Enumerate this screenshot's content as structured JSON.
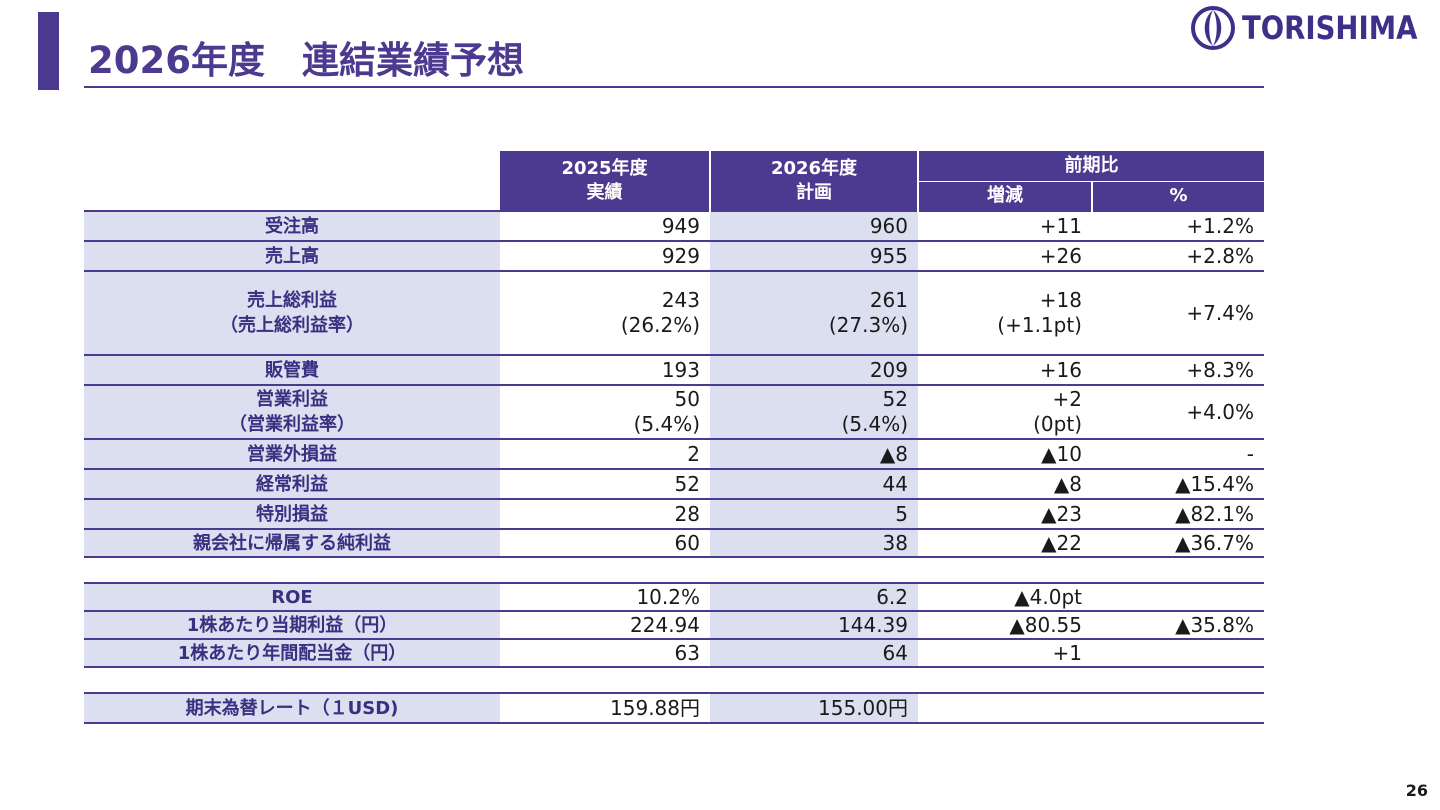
{
  "title": "2026年度　連結業績予想",
  "logo": {
    "text": "TORISHIMA",
    "icon": "torishima-logo-icon",
    "color": "#3d2f8a"
  },
  "page_number": "26",
  "colors": {
    "accent": "#4b3a8f",
    "label_bg": "#dcdff0"
  },
  "table": {
    "header": {
      "col1": [
        "2025年度",
        "実績"
      ],
      "col2": [
        "2026年度",
        "計画"
      ],
      "col3": "前期比",
      "col3a": "増減",
      "col3b": "%"
    },
    "rows": [
      {
        "label": [
          "受注高"
        ],
        "v2025": [
          "949"
        ],
        "v2026": [
          "960"
        ],
        "diff": [
          "+11"
        ],
        "pct": "+1.2%"
      },
      {
        "label": [
          "売上高"
        ],
        "v2025": [
          "929"
        ],
        "v2026": [
          "955"
        ],
        "diff": [
          "+26"
        ],
        "pct": "+2.8%"
      },
      {
        "label": [
          "売上総利益",
          "（売上総利益率）"
        ],
        "v2025": [
          "243",
          "(26.2%)"
        ],
        "v2026": [
          "261",
          "(27.3%)"
        ],
        "diff": [
          "+18",
          "(+1.1pt)"
        ],
        "pct": "+7.4%"
      },
      {
        "label": [
          "販管費"
        ],
        "v2025": [
          "193"
        ],
        "v2026": [
          "209"
        ],
        "diff": [
          "+16"
        ],
        "pct": "+8.3%"
      },
      {
        "label": [
          "営業利益",
          "（営業利益率）"
        ],
        "v2025": [
          "50",
          "(5.4%)"
        ],
        "v2026": [
          "52",
          "(5.4%)"
        ],
        "diff": [
          "+2",
          "(0pt)"
        ],
        "pct": "+4.0%"
      },
      {
        "label": [
          "営業外損益"
        ],
        "v2025": [
          "2"
        ],
        "v2026": [
          "▲8"
        ],
        "diff": [
          "▲10"
        ],
        "pct": "-"
      },
      {
        "label": [
          "経常利益"
        ],
        "v2025": [
          "52"
        ],
        "v2026": [
          "44"
        ],
        "diff": [
          "▲8"
        ],
        "pct": "▲15.4%"
      },
      {
        "label": [
          "特別損益"
        ],
        "v2025": [
          "28"
        ],
        "v2026": [
          "5"
        ],
        "diff": [
          "▲23"
        ],
        "pct": "▲82.1%"
      },
      {
        "label": [
          "親会社に帰属する純利益"
        ],
        "v2025": [
          "60"
        ],
        "v2026": [
          "38"
        ],
        "diff": [
          "▲22"
        ],
        "pct": "▲36.7%"
      }
    ],
    "rows2": [
      {
        "label": [
          "ROE"
        ],
        "v2025": [
          "10.2%"
        ],
        "v2026": [
          "6.2"
        ],
        "diff": [
          "▲4.0pt"
        ],
        "pct": ""
      },
      {
        "label": [
          "1株あたり当期利益（円）"
        ],
        "v2025": [
          "224.94"
        ],
        "v2026": [
          "144.39"
        ],
        "diff": [
          "▲80.55"
        ],
        "pct": "▲35.8%"
      },
      {
        "label": [
          "1株あたり年間配当金（円）"
        ],
        "v2025": [
          "63"
        ],
        "v2026": [
          "64"
        ],
        "diff": [
          "+1"
        ],
        "pct": ""
      }
    ],
    "rows3": [
      {
        "label": [
          "期末為替レート（１USD)"
        ],
        "v2025": [
          "159.88円"
        ],
        "v2026": [
          "155.00円"
        ],
        "diff": [
          ""
        ],
        "pct": ""
      }
    ]
  }
}
